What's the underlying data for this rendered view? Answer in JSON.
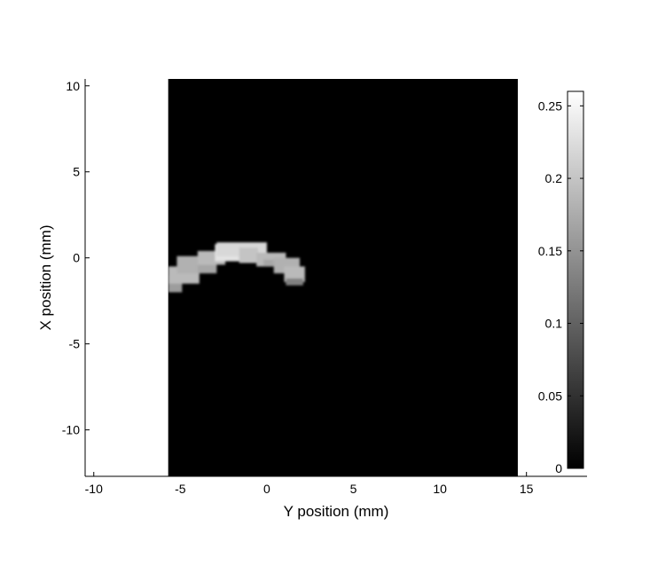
{
  "chart_data": {
    "type": "heatmap",
    "colormap": "gray",
    "xlabel": "Y position (mm)",
    "ylabel": "X position (mm)",
    "xlim": [
      -10.5,
      18.5
    ],
    "ylim": [
      -12.7,
      10.4
    ],
    "x_ticks": [
      -10,
      -5,
      0,
      5,
      10,
      15
    ],
    "x_tick_labels": [
      "-10",
      "-5",
      "0",
      "5",
      "10",
      "15"
    ],
    "y_ticks": [
      10,
      5,
      0,
      -5,
      -10
    ],
    "y_tick_labels": [
      "10",
      "5",
      "0",
      "-5",
      "-10"
    ],
    "image_extent": {
      "x": [
        -5.7,
        14.5
      ],
      "y": [
        -12.7,
        10.4
      ]
    },
    "background_value": 0,
    "cells": [
      {
        "x": [
          -5.7,
          -4.9
        ],
        "y": [
          -2.0,
          -1.0
        ],
        "value": 0.16
      },
      {
        "x": [
          -5.7,
          -3.9
        ],
        "y": [
          -1.5,
          -0.5
        ],
        "value": 0.19
      },
      {
        "x": [
          -5.2,
          -3.9
        ],
        "y": [
          -0.9,
          0.1
        ],
        "value": 0.18
      },
      {
        "x": [
          -4.0,
          -2.9
        ],
        "y": [
          -0.9,
          -0.1
        ],
        "value": 0.17
      },
      {
        "x": [
          -4.0,
          -2.4
        ],
        "y": [
          -0.4,
          0.4
        ],
        "value": 0.19
      },
      {
        "x": [
          -3.0,
          -0.8
        ],
        "y": [
          -0.2,
          0.8
        ],
        "value": 0.23
      },
      {
        "x": [
          -2.9,
          0.0
        ],
        "y": [
          0.1,
          0.9
        ],
        "value": 0.22
      },
      {
        "x": [
          -1.6,
          -0.5
        ],
        "y": [
          -0.3,
          0.6
        ],
        "value": 0.2
      },
      {
        "x": [
          -0.6,
          1.1
        ],
        "y": [
          -0.5,
          0.3
        ],
        "value": 0.19
      },
      {
        "x": [
          -0.2,
          1.0
        ],
        "y": [
          -0.5,
          -0.1
        ],
        "value": 0.17
      },
      {
        "x": [
          0.4,
          1.9
        ],
        "y": [
          -0.9,
          0.0
        ],
        "value": 0.18
      },
      {
        "x": [
          1.0,
          2.2
        ],
        "y": [
          -1.4,
          -0.5
        ],
        "value": 0.19
      },
      {
        "x": [
          1.1,
          2.1
        ],
        "y": [
          -1.6,
          -1.2
        ],
        "value": 0.13
      }
    ],
    "colorbar": {
      "range": [
        0,
        0.26
      ],
      "ticks": [
        0,
        0.05,
        0.1,
        0.15,
        0.2,
        0.25
      ],
      "tick_labels": [
        "0",
        "0.05",
        "0.1",
        "0.15",
        "0.2",
        "0.25"
      ]
    }
  }
}
